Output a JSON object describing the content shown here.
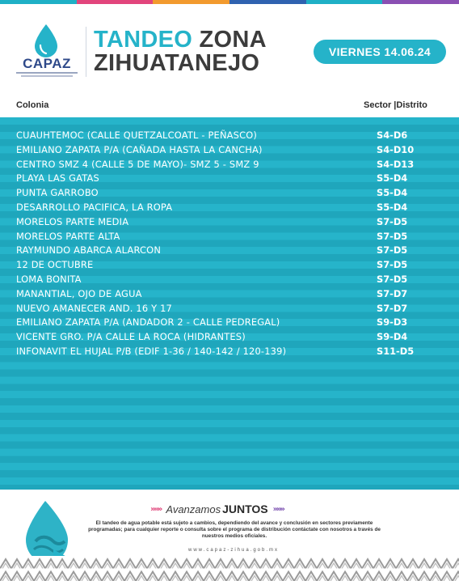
{
  "colors": {
    "accent": "#25b3c9",
    "dark_text": "#3c3c3c",
    "logo_blue": "#2f4a8a",
    "top_bar": [
      "#1fb0c6",
      "#e2457c",
      "#f29a2e",
      "#2f62b0",
      "#1fb0c6",
      "#8a4fb3"
    ]
  },
  "header": {
    "logo_text": "CAPAZ",
    "title_word1": "TANDEO",
    "title_word2": "ZONA",
    "title_line2": "ZIHUATANEJO",
    "date": "VIERNES 14.06.24"
  },
  "columns": {
    "colonia": "Colonia",
    "sector": "Sector |Distrito"
  },
  "rows": [
    {
      "name": "CUAUHTEMOC (CALLE QUETZALCOATL - PEÑASCO)",
      "code": "S4-D6"
    },
    {
      "name": "EMILIANO ZAPATA P/A (CAÑADA HASTA LA CANCHA)",
      "code": "S4-D10"
    },
    {
      "name": "CENTRO SMZ 4 (CALLE 5 DE MAYO)- SMZ 5 - SMZ 9",
      "code": "S4-D13"
    },
    {
      "name": "PLAYA LAS GATAS",
      "code": "S5-D4"
    },
    {
      "name": "PUNTA GARROBO",
      "code": "S5-D4"
    },
    {
      "name": "DESARROLLO PACIFICA, LA ROPA",
      "code": "S5-D4"
    },
    {
      "name": "MORELOS PARTE MEDIA",
      "code": "S7-D5"
    },
    {
      "name": "MORELOS PARTE ALTA",
      "code": "S7-D5"
    },
    {
      "name": "RAYMUNDO ABARCA ALARCON",
      "code": "S7-D5"
    },
    {
      "name": "12 DE OCTUBRE",
      "code": "S7-D5"
    },
    {
      "name": "LOMA BONITA",
      "code": "S7-D5"
    },
    {
      "name": "MANANTIAL, OJO DE AGUA",
      "code": "S7-D7"
    },
    {
      "name": "NUEVO AMANECER AND. 16 Y 17",
      "code": "S7-D7"
    },
    {
      "name": "EMILIANO ZAPATA P/A (ANDADOR 2 - CALLE PEDREGAL)",
      "code": "S9-D3"
    },
    {
      "name": "VICENTE GRO. P/A CALLE LA ROCA (HIDRANTES)",
      "code": "S9-D4"
    },
    {
      "name": "INFONAVIT EL HUJAL P/B (EDIF 1-36 / 140-142 / 120-139)",
      "code": "S11-D5"
    }
  ],
  "footer": {
    "slogan_left_arrows": "»»»",
    "slogan_regular": "Avanzamos",
    "slogan_bold": "JUNTOS",
    "slogan_right_arrows": "»»»",
    "disclaimer": "El tandeo de agua potable está sujeto a cambios, dependiendo del avance y conclusión en sectores previamente programadas; para cualquier reporte o consulta sobre el programa de distribución contáctate con nosotros a través de nuestros medios oficiales.",
    "website": "www.capaz-zihua.gob.mx"
  }
}
